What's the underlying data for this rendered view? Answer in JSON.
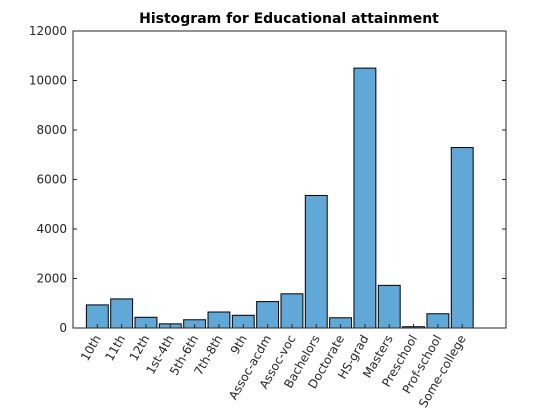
{
  "chart_data": {
    "type": "bar",
    "title": "Histogram for Educational attainment",
    "xlabel": "",
    "ylabel": "",
    "categories": [
      "10th",
      "11th",
      "12th",
      "1st-4th",
      "5th-6th",
      "7th-8th",
      "9th",
      "Assoc-acdm",
      "Assoc-voc",
      "Bachelors",
      "Doctorate",
      "HS-grad",
      "Masters",
      "Preschool",
      "Prof-school",
      "Some-college"
    ],
    "values": [
      933,
      1175,
      433,
      168,
      333,
      646,
      514,
      1067,
      1382,
      5355,
      413,
      10501,
      1723,
      51,
      576,
      7291
    ],
    "ylim": [
      0,
      12000
    ],
    "yticks": [
      0,
      2000,
      4000,
      6000,
      8000,
      10000,
      12000
    ],
    "grid": false,
    "colors": {
      "bar": "#5fa8d8",
      "edge": "#000000"
    }
  }
}
